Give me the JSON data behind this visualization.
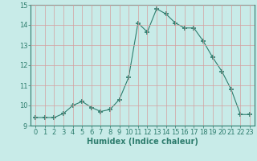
{
  "x": [
    0,
    1,
    2,
    3,
    4,
    5,
    6,
    7,
    8,
    9,
    10,
    11,
    12,
    13,
    14,
    15,
    16,
    17,
    18,
    19,
    20,
    21,
    22,
    23
  ],
  "y": [
    9.4,
    9.4,
    9.4,
    9.6,
    10.0,
    10.2,
    9.9,
    9.7,
    9.8,
    10.3,
    11.4,
    14.1,
    13.65,
    14.8,
    14.55,
    14.1,
    13.85,
    13.85,
    13.2,
    12.4,
    11.7,
    10.8,
    9.55,
    9.55
  ],
  "line_color": "#2e7d6e",
  "marker": "+",
  "marker_size": 4,
  "bg_color": "#c8ebe8",
  "grid_color": "#d4a0a0",
  "xlabel": "Humidex (Indice chaleur)",
  "xlim": [
    -0.5,
    23.5
  ],
  "ylim": [
    9,
    15
  ],
  "yticks": [
    9,
    10,
    11,
    12,
    13,
    14,
    15
  ],
  "xticks": [
    0,
    1,
    2,
    3,
    4,
    5,
    6,
    7,
    8,
    9,
    10,
    11,
    12,
    13,
    14,
    15,
    16,
    17,
    18,
    19,
    20,
    21,
    22,
    23
  ],
  "label_fontsize": 7,
  "tick_fontsize": 6
}
